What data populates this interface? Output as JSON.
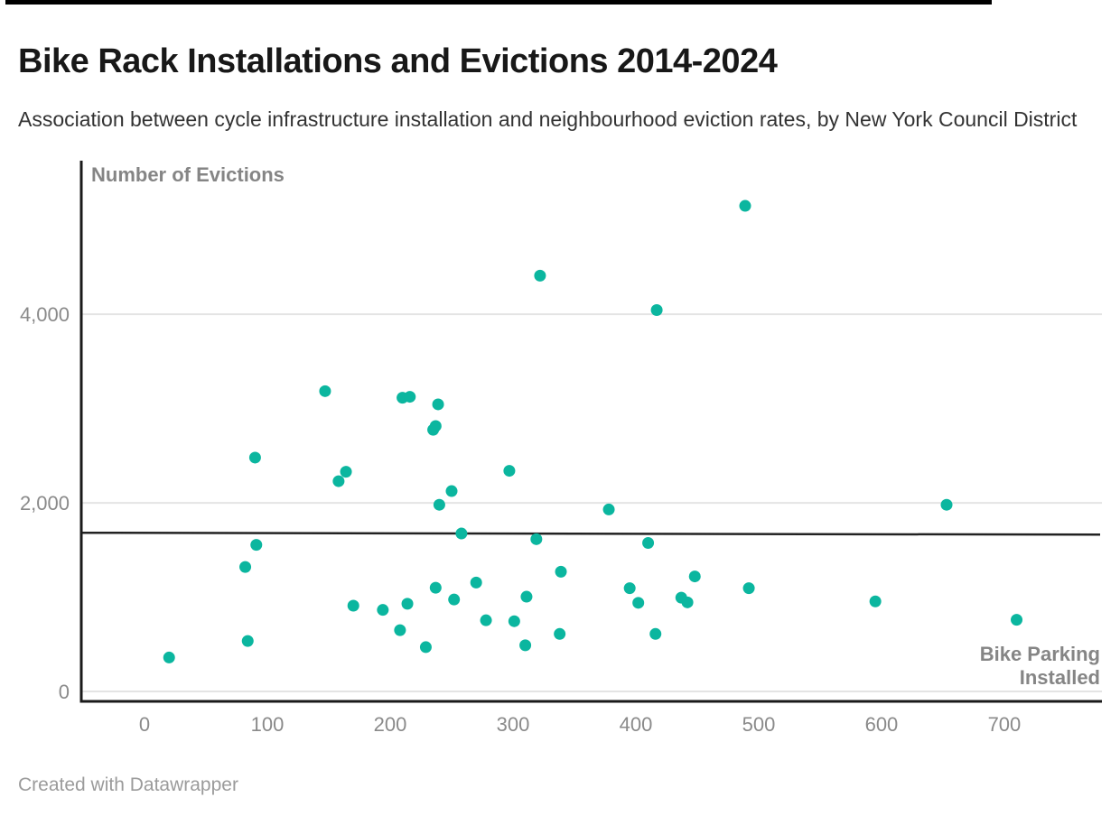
{
  "header": {
    "title": "Bike Rack Installations and Evictions 2014-2024",
    "subtitle": "Association between cycle infrastructure installation and neighbourhood eviction rates, by New York Council District"
  },
  "footer": {
    "credit": "Created with Datawrapper"
  },
  "chart_data": {
    "type": "scatter",
    "title": "Bike Rack Installations and Evictions 2014-2024",
    "subtitle": "Association between cycle infrastructure installation and neighbourhood eviction rates, by New York Council District",
    "xlabel": "Bike Parking Installed",
    "ylabel": "Number of Evictions",
    "xlim": [
      -51.5,
      778
    ],
    "ylim": [
      -105,
      5610
    ],
    "grid": "horizontal-only",
    "legend": "none",
    "x_ticks": [
      {
        "value": 0,
        "label": "0"
      },
      {
        "value": 100,
        "label": "100"
      },
      {
        "value": 200,
        "label": "200"
      },
      {
        "value": 300,
        "label": "300"
      },
      {
        "value": 400,
        "label": "400"
      },
      {
        "value": 500,
        "label": "500"
      },
      {
        "value": 600,
        "label": "600"
      },
      {
        "value": 700,
        "label": "700"
      }
    ],
    "y_ticks": [
      {
        "value": 0,
        "label": "0"
      },
      {
        "value": 2000,
        "label": "2,000"
      },
      {
        "value": 4000,
        "label": "4,000"
      }
    ],
    "colors": {
      "point": "#0bb69f",
      "trend_line": "#222222",
      "gridline": "#e4e4e4",
      "axis_line": "#1a1a1a",
      "tick_label": "#8a8a8a",
      "axis_title": "#858585"
    },
    "trend_line": {
      "x1": -51.5,
      "y1": 1683,
      "x2": 778,
      "y2": 1663
    },
    "points": [
      [
        20,
        360
      ],
      [
        82,
        1320
      ],
      [
        84,
        535
      ],
      [
        90,
        2480
      ],
      [
        91,
        1555
      ],
      [
        147,
        3185
      ],
      [
        158,
        2230
      ],
      [
        164,
        2330
      ],
      [
        170,
        910
      ],
      [
        194,
        865
      ],
      [
        208,
        650
      ],
      [
        210,
        3115
      ],
      [
        214,
        930
      ],
      [
        216,
        3125
      ],
      [
        229,
        470
      ],
      [
        235,
        2775
      ],
      [
        237,
        2815
      ],
      [
        237,
        1100
      ],
      [
        239,
        3045
      ],
      [
        240,
        1980
      ],
      [
        250,
        2125
      ],
      [
        252,
        975
      ],
      [
        258,
        1675
      ],
      [
        270,
        1155
      ],
      [
        278,
        755
      ],
      [
        297,
        2340
      ],
      [
        301,
        745
      ],
      [
        310,
        490
      ],
      [
        311,
        1005
      ],
      [
        319,
        1615
      ],
      [
        322,
        4410
      ],
      [
        338,
        610
      ],
      [
        339,
        1270
      ],
      [
        378,
        1930
      ],
      [
        395,
        1095
      ],
      [
        402,
        940
      ],
      [
        410,
        1575
      ],
      [
        416,
        610
      ],
      [
        417,
        4045
      ],
      [
        437,
        995
      ],
      [
        442,
        945
      ],
      [
        448,
        1220
      ],
      [
        489,
        5150
      ],
      [
        492,
        1095
      ],
      [
        595,
        955
      ],
      [
        653,
        1980
      ],
      [
        710,
        760
      ]
    ]
  }
}
